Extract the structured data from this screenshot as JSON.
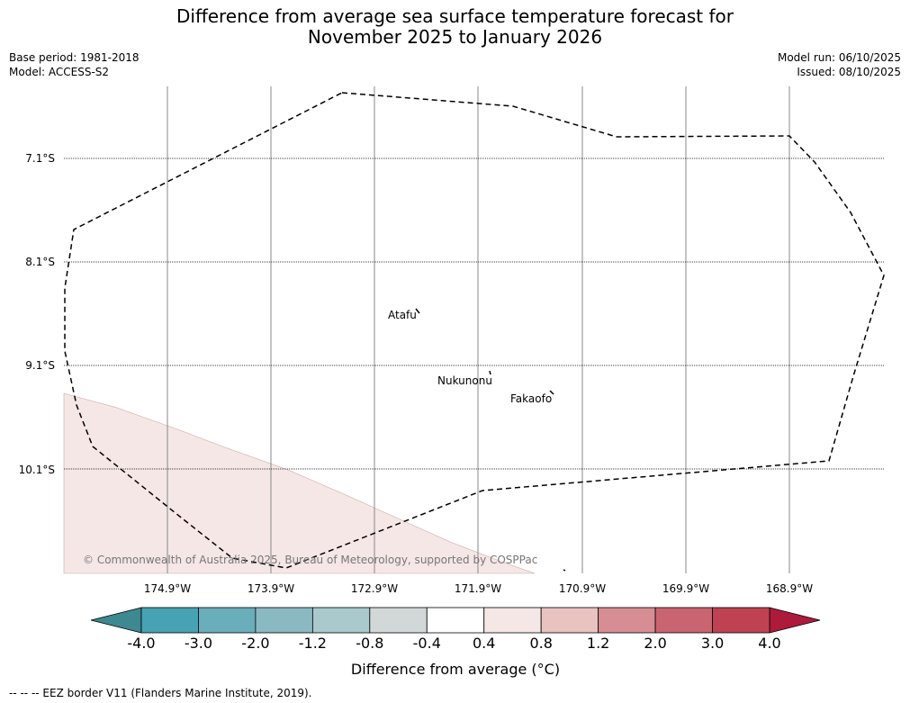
{
  "title": {
    "line1": "Difference from average sea surface temperature forecast for",
    "line2": "November 2025 to January 2026"
  },
  "meta": {
    "base_period": "Base period: 1981-2018",
    "model": "Model: ACCESS-S2",
    "model_run": "Model run: 06/10/2025",
    "issued": "Issued: 08/10/2025"
  },
  "map": {
    "lat_labels": [
      "7.1°S",
      "8.1°S",
      "9.1°S",
      "10.1°S"
    ],
    "lon_labels": [
      "174.9°W",
      "173.9°W",
      "172.9°W",
      "171.9°W",
      "170.9°W",
      "169.9°W",
      "168.9°W"
    ],
    "places": [
      "Atafu",
      "Nukunonu",
      "Fakaofo"
    ],
    "copyright": "© Commonwealth of Australia 2025, Bureau of Meteorology, supported by COSPPac",
    "anomaly_region_value": "0.4 to 0.8"
  },
  "colorbar": {
    "ticks": [
      "-4.0",
      "-3.0",
      "-2.0",
      "-1.2",
      "-0.8",
      "-0.4",
      "0.4",
      "0.8",
      "1.2",
      "2.0",
      "3.0",
      "4.0"
    ],
    "colors": [
      "#47a3b3",
      "#6aadbb",
      "#8bb9c2",
      "#a9c9cd",
      "#d2d7d8",
      "#ffffff",
      "#f5e7e5",
      "#e8c3c0",
      "#d68d94",
      "#c96570",
      "#bf4253"
    ],
    "under_color": "#3d8891",
    "over_color": "#ae1a3b",
    "label": "Difference from average (°C)"
  },
  "footer": "--  --  -- EEZ border V11 (Flanders Marine Institute, 2019)."
}
